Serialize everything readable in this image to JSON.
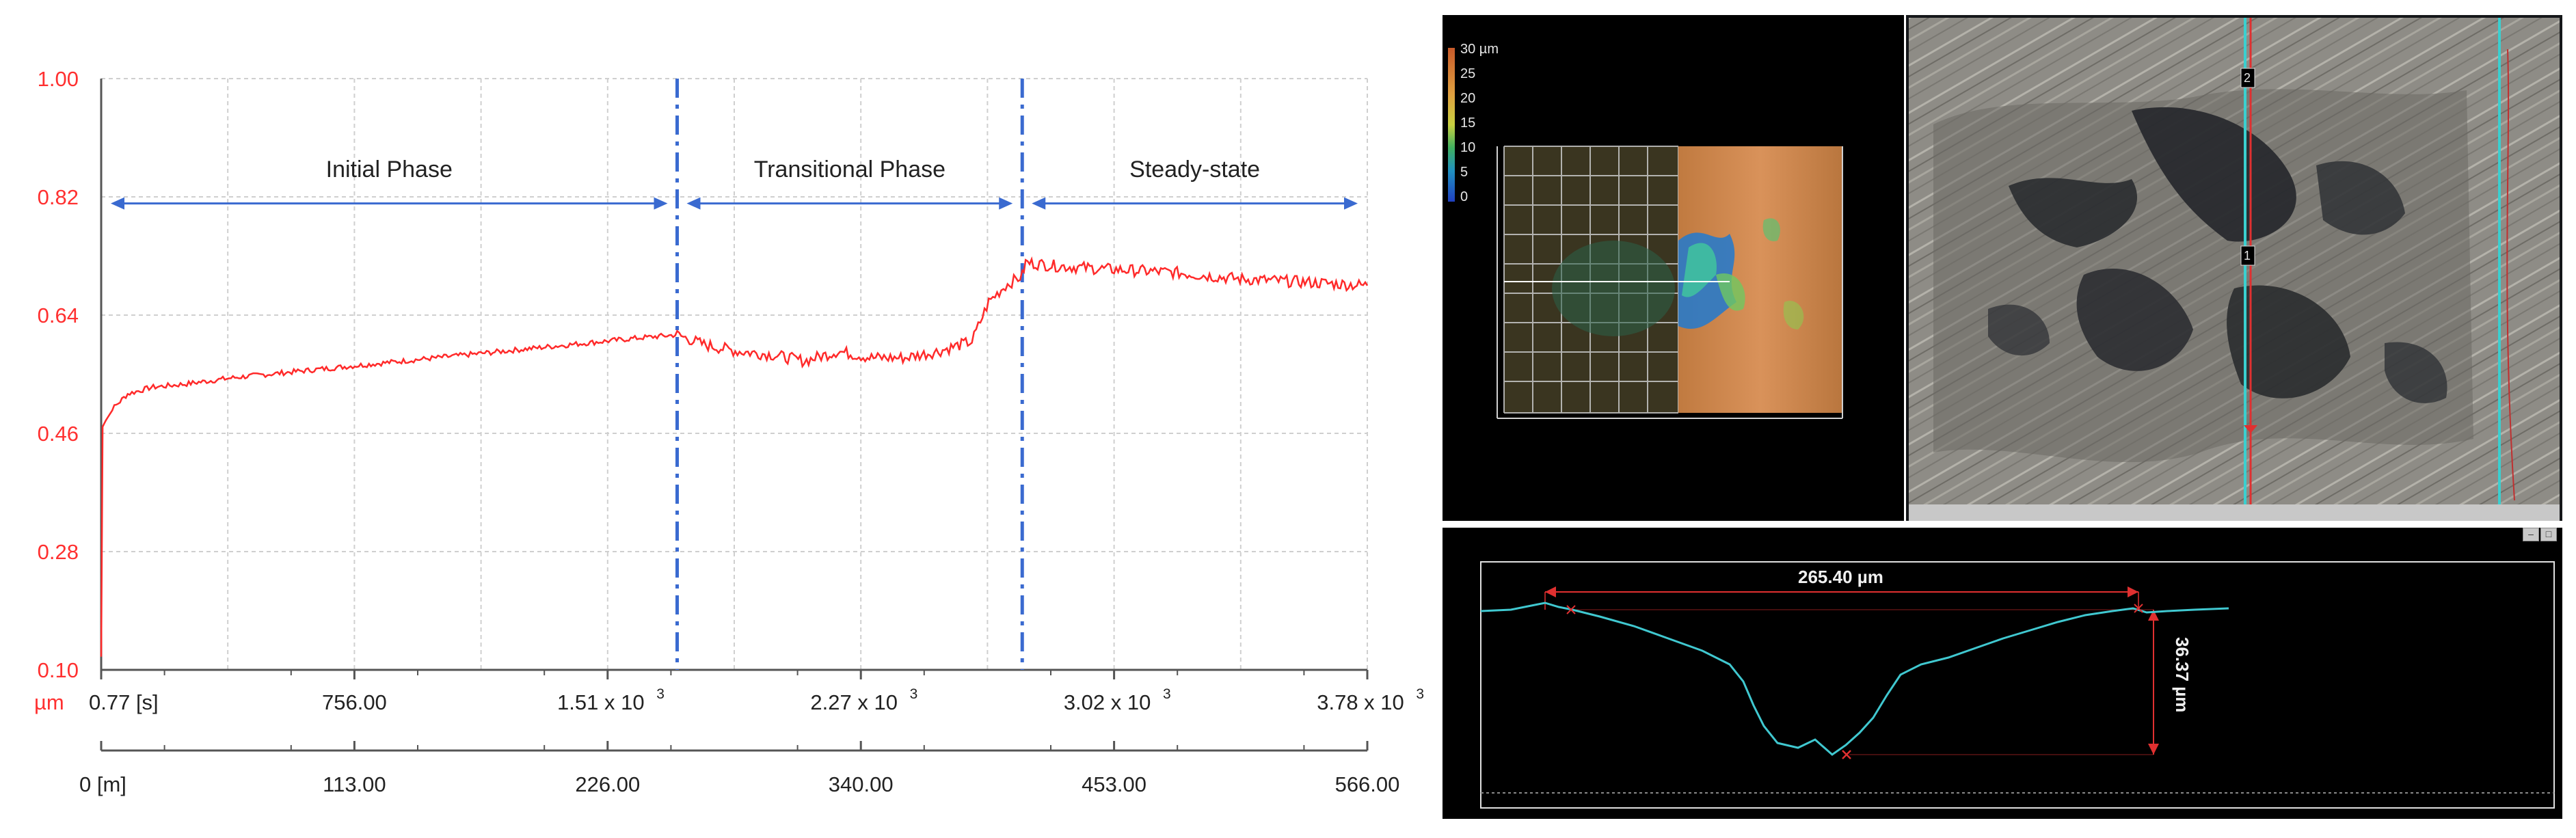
{
  "chart_data": {
    "type": "line",
    "title": "",
    "y_unit": "µm",
    "y_ticks": [
      "1.00",
      "0.82",
      "0.64",
      "0.46",
      "0.28",
      "0.10"
    ],
    "ylim": [
      0.1,
      1.0
    ],
    "x_time_ticks": [
      "0.77 [s]",
      "756.00",
      "1.51 x 10",
      "2.27 x 10",
      "3.02 x 10",
      "3.78 x 10"
    ],
    "x_time_exponent": "3",
    "x_distance_ticks": [
      "0 [m]",
      "113.00",
      "226.00",
      "340.00",
      "453.00",
      "566.00"
    ],
    "x_time_range": [
      0.77,
      3780
    ],
    "grid": true,
    "phases": [
      {
        "label": "Initial Phase",
        "start_s": 0.77,
        "end_s": 1720
      },
      {
        "label": "Transitional Phase",
        "start_s": 1720,
        "end_s": 2750
      },
      {
        "label": "Steady-state",
        "start_s": 2750,
        "end_s": 3780
      }
    ],
    "phase_boundaries_s": [
      1720,
      2750
    ],
    "series": [
      {
        "color": "#ff2a2a",
        "x": [
          0.77,
          5,
          15,
          40,
          80,
          150,
          250,
          400,
          600,
          800,
          1000,
          1200,
          1400,
          1600,
          1720,
          1800,
          1900,
          2000,
          2100,
          2200,
          2300,
          2400,
          2500,
          2600,
          2650,
          2700,
          2750,
          2760,
          2850,
          3000,
          3200,
          3400,
          3600,
          3780
        ],
        "y": [
          0.12,
          0.47,
          0.48,
          0.5,
          0.52,
          0.53,
          0.535,
          0.545,
          0.555,
          0.565,
          0.575,
          0.585,
          0.595,
          0.605,
          0.61,
          0.595,
          0.585,
          0.58,
          0.57,
          0.585,
          0.575,
          0.575,
          0.585,
          0.6,
          0.66,
          0.685,
          0.7,
          0.72,
          0.715,
          0.71,
          0.705,
          0.695,
          0.69,
          0.685
        ]
      }
    ]
  },
  "heatmap": {
    "scale_unit": "30 µm",
    "scale_ticks": [
      "25",
      "20",
      "15",
      "10",
      "5",
      "0"
    ]
  },
  "micrograph": {
    "markers": [
      "2",
      "1"
    ]
  },
  "profile": {
    "width_label": "265.40 µm",
    "depth_label": "36.37 µm"
  }
}
